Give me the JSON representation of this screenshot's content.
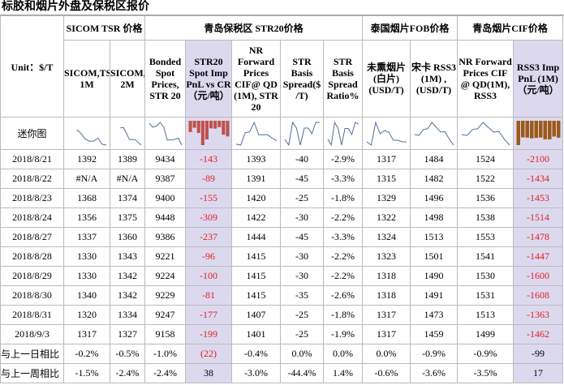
{
  "header": {
    "title": "标胶和烟片外盘及保税区报价"
  },
  "unit_label": "Unit：$/T",
  "groups": [
    "SICOM TSR 价格",
    "青岛保税区 STR20价格",
    "泰国烟片FOB价格",
    "青岛烟片CIF价格"
  ],
  "subheaders": [
    "SICOM,TSR, 1M",
    "SICOM,TSR, 2M",
    "Bonded Spot Prices, STR 20",
    "STR20 Spot Imp PnL vs CR（元/吨）",
    "NR Forward Prices CIF@ QD (1M), STR 20",
    "STR Basis Spread($ /T)",
    "STR Basis Spread Ratio%",
    "未熏烟片(白片) (USD/T)",
    "宋卡 RSS3 (1M) ,(USD/T)",
    "NR Forward Prices CIF @ QD(1M), RSS3",
    "RSS3 Imp PnL (1M)（元/吨）"
  ],
  "spark_label": "迷你图",
  "rows": [
    [
      "2018/8/21",
      "1392",
      "1389",
      "9434",
      "-143",
      "1393",
      "-40",
      "-2.9%",
      "1317",
      "1484",
      "1524",
      "-2100"
    ],
    [
      "2018/8/22",
      "#N/A",
      "#N/A",
      "9387",
      "-89",
      "1391",
      "-45",
      "-3.3%",
      "1315",
      "1482",
      "1522",
      "-1434"
    ],
    [
      "2018/8/23",
      "1368",
      "1374",
      "9400",
      "-155",
      "1420",
      "-25",
      "-1.8%",
      "1329",
      "1496",
      "1536",
      "-1453"
    ],
    [
      "2018/8/24",
      "1356",
      "1375",
      "9448",
      "-309",
      "1422",
      "-30",
      "-2.2%",
      "1322",
      "1498",
      "1538",
      "-1514"
    ],
    [
      "2018/8/27",
      "1337",
      "1360",
      "9386",
      "-237",
      "1444",
      "-45",
      "-3.3%",
      "1324",
      "1513",
      "1553",
      "-1478"
    ],
    [
      "2018/8/28",
      "1330",
      "1343",
      "9221",
      "-96",
      "1415",
      "-30",
      "-2.2%",
      "1323",
      "1501",
      "1541",
      "-1447"
    ],
    [
      "2018/8/29",
      "1330",
      "1342",
      "9224",
      "-100",
      "1415",
      "-30",
      "-2.2%",
      "1318",
      "1490",
      "1530",
      "-1600"
    ],
    [
      "2018/8/30",
      "1340",
      "1342",
      "9229",
      "-81",
      "1415",
      "-35",
      "-2.6%",
      "1318",
      "1491",
      "1531",
      "-1608"
    ],
    [
      "2018/8/31",
      "1320",
      "1334",
      "9247",
      "-177",
      "1407",
      "-25",
      "-1.8%",
      "1317",
      "1473",
      "1513",
      "-1363"
    ],
    [
      "2018/9/3",
      "1317",
      "1327",
      "9158",
      "-199",
      "1401",
      "-25",
      "-1.9%",
      "1317",
      "1459",
      "1499",
      "-1462"
    ]
  ],
  "summary": [
    [
      "与上一日相比",
      "-0.2%",
      "-0.5%",
      "-1.0%",
      "(22)",
      "-0.4%",
      "0.0%",
      "0.0%",
      "0.0%",
      "-0.9%",
      "-0.9%",
      "-99"
    ],
    [
      "与上一周相比",
      "-1.5%",
      "-2.4%",
      "-2.4%",
      "38",
      "-3.0%",
      "-44.4%",
      "1.4%",
      "-0.6%",
      "-3.6%",
      "-3.5%",
      "17"
    ]
  ]
}
